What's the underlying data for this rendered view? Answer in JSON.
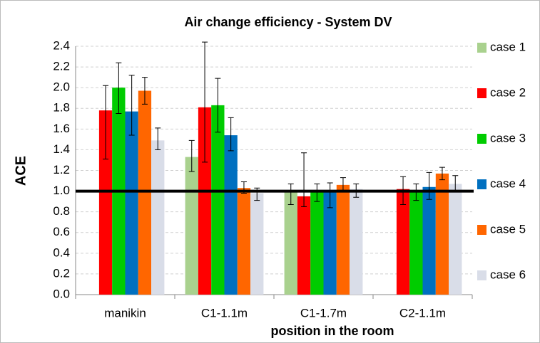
{
  "chart_data": {
    "type": "bar",
    "title": "Air change efficiency - System DV",
    "xlabel": "position in the room",
    "ylabel": "ACE",
    "categories": [
      "manikin",
      "C1-1.1m",
      "C1-1.7m",
      "C2-1.1m"
    ],
    "series": [
      {
        "name": "case 1",
        "color": "#a9d18e",
        "values": [
          null,
          1.33,
          1.0,
          null
        ],
        "err_plus": [
          null,
          0.16,
          0.07,
          null
        ],
        "err_minus": [
          null,
          0.14,
          0.13,
          null
        ]
      },
      {
        "name": "case 2",
        "color": "#ff0000",
        "values": [
          1.78,
          1.81,
          0.95,
          1.02
        ],
        "err_plus": [
          0.24,
          0.63,
          0.42,
          0.12
        ],
        "err_minus": [
          0.47,
          0.53,
          0.1,
          0.15
        ]
      },
      {
        "name": "case 3",
        "color": "#00cc00",
        "values": [
          2.0,
          1.83,
          1.0,
          1.0
        ],
        "err_plus": [
          0.24,
          0.26,
          0.07,
          0.07
        ],
        "err_minus": [
          0.25,
          0.26,
          0.1,
          0.09
        ]
      },
      {
        "name": "case 4",
        "color": "#0070c0",
        "values": [
          1.77,
          1.54,
          1.0,
          1.04
        ],
        "err_plus": [
          0.35,
          0.17,
          0.08,
          0.14
        ],
        "err_minus": [
          0.23,
          0.15,
          0.16,
          0.12
        ]
      },
      {
        "name": "case 5",
        "color": "#ff6600",
        "values": [
          1.97,
          1.03,
          1.06,
          1.17
        ],
        "err_plus": [
          0.13,
          0.06,
          0.07,
          0.06
        ],
        "err_minus": [
          0.13,
          0.05,
          0.06,
          0.06
        ]
      },
      {
        "name": "case 6",
        "color": "#d9dde8",
        "values": [
          1.49,
          0.98,
          1.02,
          1.07
        ],
        "err_plus": [
          0.12,
          0.05,
          0.05,
          0.08
        ],
        "err_minus": [
          0.09,
          0.07,
          0.08,
          0.07
        ]
      }
    ],
    "reference_line": 1.0,
    "ylim": [
      0,
      2.4
    ],
    "yticks": [
      {
        "value": 0,
        "label": "0.0"
      },
      0.2,
      0.4,
      0.6,
      0.8,
      {
        "value": 1,
        "label": "1.0"
      },
      1.2,
      1.4,
      1.6,
      1.8,
      {
        "value": 2,
        "label": "2.0"
      },
      2.2,
      2.4
    ],
    "grid": true,
    "legend": "right"
  }
}
